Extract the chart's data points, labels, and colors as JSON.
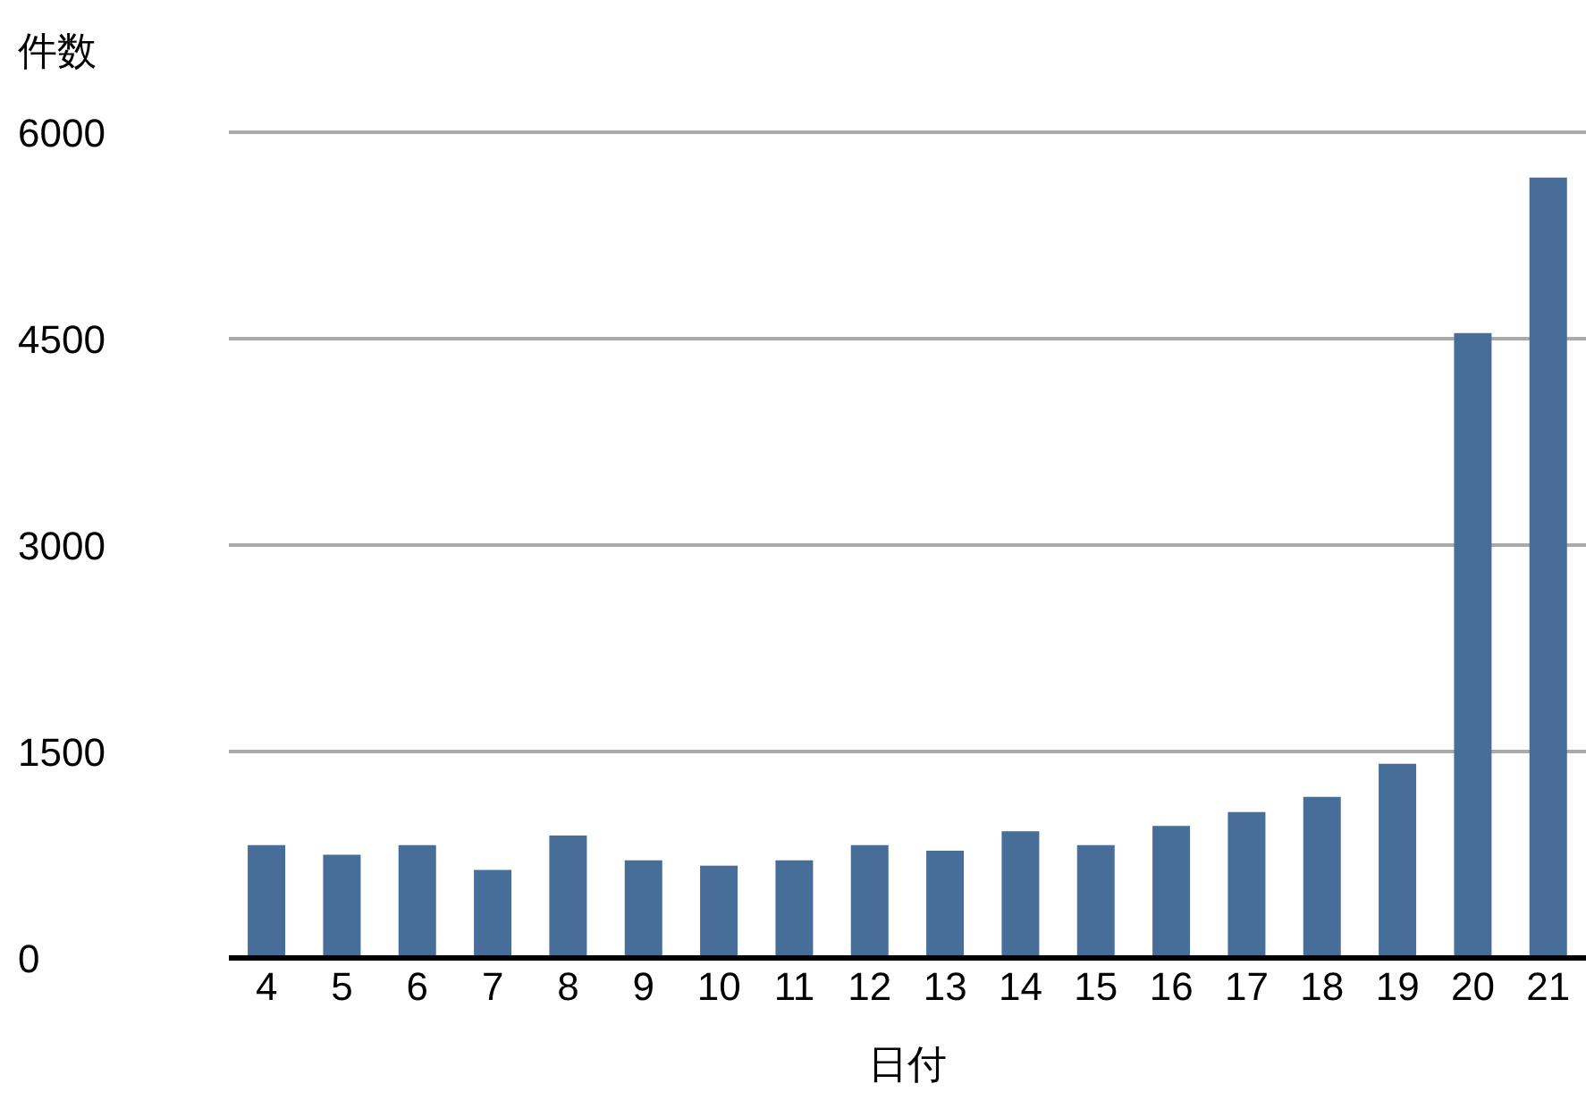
{
  "chart_data": {
    "type": "bar",
    "xlabel": "日付",
    "ylabel": "件数",
    "categories": [
      "4",
      "5",
      "6",
      "7",
      "8",
      "9",
      "10",
      "11",
      "12",
      "13",
      "14",
      "15",
      "16",
      "17",
      "18",
      "19",
      "20",
      "21"
    ],
    "values": [
      820,
      750,
      820,
      640,
      890,
      710,
      670,
      710,
      820,
      780,
      920,
      820,
      960,
      1060,
      1170,
      1410,
      4540,
      5670
    ],
    "color": "#466e99",
    "ylim": [
      0,
      6000
    ],
    "yticks": [
      0,
      1500,
      3000,
      4500,
      6000
    ],
    "grid": "y"
  }
}
